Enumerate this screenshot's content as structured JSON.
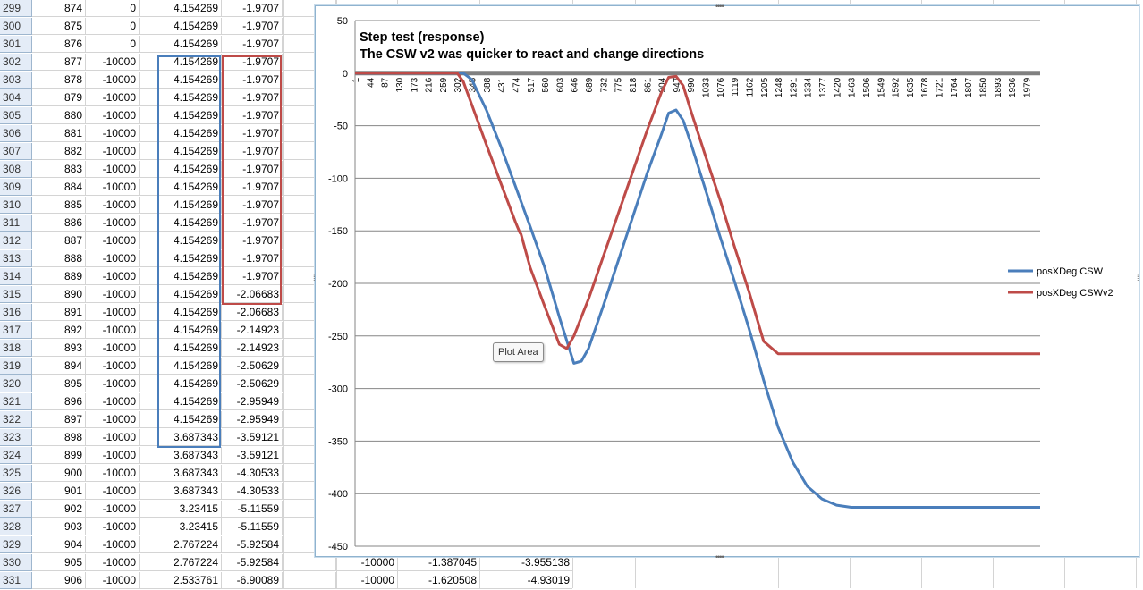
{
  "spreadsheet": {
    "rows": [
      {
        "n": "299",
        "b": "874",
        "c": "0",
        "d": "4.154269",
        "e": "-1.9707"
      },
      {
        "n": "300",
        "b": "875",
        "c": "0",
        "d": "4.154269",
        "e": "-1.9707"
      },
      {
        "n": "301",
        "b": "876",
        "c": "0",
        "d": "4.154269",
        "e": "-1.9707"
      },
      {
        "n": "302",
        "b": "877",
        "c": "-10000",
        "d": "4.154269",
        "e": "-1.9707"
      },
      {
        "n": "303",
        "b": "878",
        "c": "-10000",
        "d": "4.154269",
        "e": "-1.9707"
      },
      {
        "n": "304",
        "b": "879",
        "c": "-10000",
        "d": "4.154269",
        "e": "-1.9707"
      },
      {
        "n": "305",
        "b": "880",
        "c": "-10000",
        "d": "4.154269",
        "e": "-1.9707"
      },
      {
        "n": "306",
        "b": "881",
        "c": "-10000",
        "d": "4.154269",
        "e": "-1.9707"
      },
      {
        "n": "307",
        "b": "882",
        "c": "-10000",
        "d": "4.154269",
        "e": "-1.9707"
      },
      {
        "n": "308",
        "b": "883",
        "c": "-10000",
        "d": "4.154269",
        "e": "-1.9707"
      },
      {
        "n": "309",
        "b": "884",
        "c": "-10000",
        "d": "4.154269",
        "e": "-1.9707"
      },
      {
        "n": "310",
        "b": "885",
        "c": "-10000",
        "d": "4.154269",
        "e": "-1.9707"
      },
      {
        "n": "311",
        "b": "886",
        "c": "-10000",
        "d": "4.154269",
        "e": "-1.9707"
      },
      {
        "n": "312",
        "b": "887",
        "c": "-10000",
        "d": "4.154269",
        "e": "-1.9707"
      },
      {
        "n": "313",
        "b": "888",
        "c": "-10000",
        "d": "4.154269",
        "e": "-1.9707"
      },
      {
        "n": "314",
        "b": "889",
        "c": "-10000",
        "d": "4.154269",
        "e": "-1.9707"
      },
      {
        "n": "315",
        "b": "890",
        "c": "-10000",
        "d": "4.154269",
        "e": "-2.06683"
      },
      {
        "n": "316",
        "b": "891",
        "c": "-10000",
        "d": "4.154269",
        "e": "-2.06683"
      },
      {
        "n": "317",
        "b": "892",
        "c": "-10000",
        "d": "4.154269",
        "e": "-2.14923"
      },
      {
        "n": "318",
        "b": "893",
        "c": "-10000",
        "d": "4.154269",
        "e": "-2.14923"
      },
      {
        "n": "319",
        "b": "894",
        "c": "-10000",
        "d": "4.154269",
        "e": "-2.50629"
      },
      {
        "n": "320",
        "b": "895",
        "c": "-10000",
        "d": "4.154269",
        "e": "-2.50629"
      },
      {
        "n": "321",
        "b": "896",
        "c": "-10000",
        "d": "4.154269",
        "e": "-2.95949"
      },
      {
        "n": "322",
        "b": "897",
        "c": "-10000",
        "d": "4.154269",
        "e": "-2.95949"
      },
      {
        "n": "323",
        "b": "898",
        "c": "-10000",
        "d": "3.687343",
        "e": "-3.59121"
      },
      {
        "n": "324",
        "b": "899",
        "c": "-10000",
        "d": "3.687343",
        "e": "-3.59121"
      },
      {
        "n": "325",
        "b": "900",
        "c": "-10000",
        "d": "3.687343",
        "e": "-4.30533"
      },
      {
        "n": "326",
        "b": "901",
        "c": "-10000",
        "d": "3.687343",
        "e": "-4.30533"
      },
      {
        "n": "327",
        "b": "902",
        "c": "-10000",
        "d": "3.23415",
        "e": "-5.11559"
      },
      {
        "n": "328",
        "b": "903",
        "c": "-10000",
        "d": "3.23415",
        "e": "-5.11559"
      },
      {
        "n": "329",
        "b": "904",
        "c": "-10000",
        "d": "2.767224",
        "e": "-5.92584"
      },
      {
        "n": "330",
        "b": "905",
        "c": "-10000",
        "d": "2.767224",
        "e": "-5.92584",
        "g": "-10000",
        "h": "-1.387045",
        "i": "-3.955138"
      },
      {
        "n": "331",
        "b": "906",
        "c": "-10000",
        "d": "2.533761",
        "e": "-6.90089",
        "g": "-10000",
        "h": "-1.620508",
        "i": "-4.93019"
      }
    ]
  },
  "chart": {
    "tooltip": "Plot Area",
    "colors": {
      "csw": "#4a7ebb",
      "cswv2": "#be4b48",
      "grid": "#868686",
      "zero_axis": "#808080"
    }
  },
  "chart_data": {
    "type": "line",
    "title": "Step test (response)\nThe CSW v2 was quicker to react and change directions",
    "title_lines": [
      "Step test (response)",
      "The CSW v2 was quicker to react and change directions"
    ],
    "xlabel": "",
    "ylabel": "",
    "ylim": [
      -450,
      50
    ],
    "yticks": [
      "50",
      "0",
      "-50",
      "-100",
      "-150",
      "-200",
      "-250",
      "-300",
      "-350",
      "-400",
      "-450"
    ],
    "xticks": [
      "1",
      "44",
      "87",
      "130",
      "173",
      "216",
      "259",
      "302",
      "345",
      "388",
      "431",
      "474",
      "517",
      "560",
      "603",
      "646",
      "689",
      "732",
      "775",
      "818",
      "861",
      "904",
      "947",
      "990",
      "1033",
      "1076",
      "1119",
      "1162",
      "1205",
      "1248",
      "1291",
      "1334",
      "1377",
      "1420",
      "1463",
      "1506",
      "1549",
      "1592",
      "1635",
      "1678",
      "1721",
      "1764",
      "1807",
      "1850",
      "1893",
      "1936",
      "1979"
    ],
    "xlim": [
      1,
      2020
    ],
    "grid": true,
    "legend_position": "right",
    "series": [
      {
        "name": "posXDeg CSW",
        "color": "#4a7ebb",
        "x": [
          1,
          320,
          345,
          388,
          431,
          474,
          517,
          560,
          603,
          646,
          668,
          689,
          732,
          775,
          818,
          861,
          904,
          925,
          947,
          968,
          990,
          1033,
          1076,
          1119,
          1162,
          1205,
          1248,
          1291,
          1334,
          1377,
          1420,
          1463,
          1506,
          1549,
          2020
        ],
        "y": [
          0,
          0,
          -6,
          -35,
          -70,
          -108,
          -146,
          -185,
          -232,
          -276,
          -274,
          -262,
          -222,
          -180,
          -138,
          -96,
          -58,
          -38,
          -35,
          -45,
          -66,
          -110,
          -155,
          -198,
          -243,
          -292,
          -337,
          -370,
          -393,
          -405,
          -411,
          -413,
          -413,
          -413,
          -413
        ]
      },
      {
        "name": "posXDeg CSWv2",
        "color": "#be4b48",
        "x": [
          1,
          302,
          320,
          345,
          388,
          431,
          474,
          487,
          490,
          517,
          560,
          603,
          625,
          646,
          689,
          732,
          775,
          818,
          861,
          904,
          925,
          947,
          968,
          990,
          1033,
          1076,
          1119,
          1162,
          1205,
          1248,
          1270,
          1291,
          2020
        ],
        "y": [
          0,
          0,
          -8,
          -30,
          -68,
          -105,
          -142,
          -152,
          -153,
          -185,
          -222,
          -258,
          -262,
          -250,
          -215,
          -175,
          -135,
          -95,
          -55,
          -18,
          -4,
          -3,
          -12,
          -35,
          -78,
          -120,
          -165,
          -208,
          -255,
          -267,
          -267,
          -267,
          -267
        ]
      }
    ]
  }
}
